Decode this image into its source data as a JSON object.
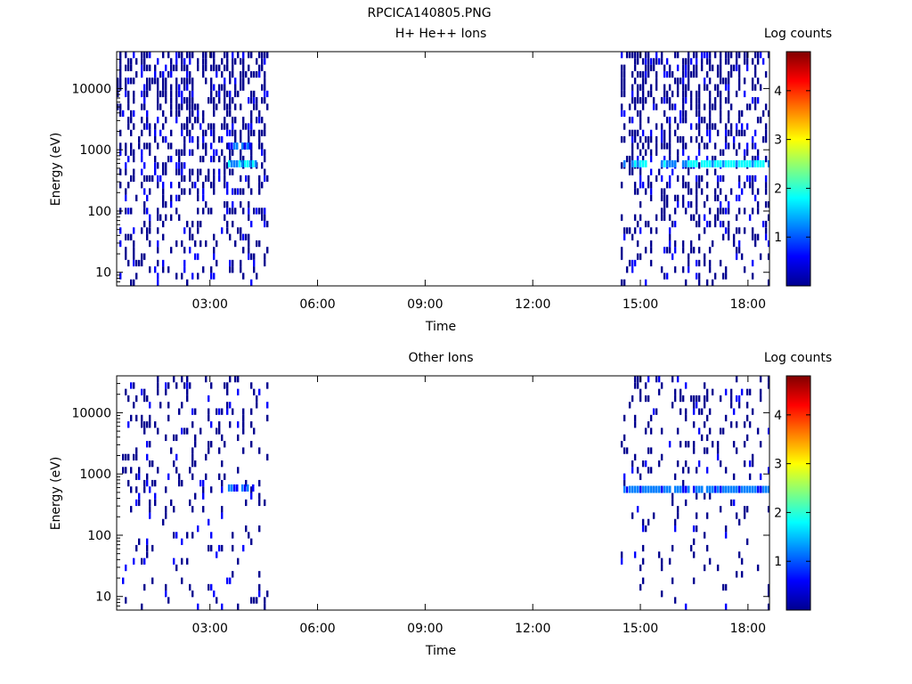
{
  "figure_title": "RPCICA140805.PNG",
  "colormap": [
    "#00008f",
    "#0000ff",
    "#0080ff",
    "#00ffff",
    "#80ff80",
    "#ffff00",
    "#ff8000",
    "#ff0000",
    "#800000"
  ],
  "chart_data": [
    {
      "type": "heatmap",
      "title": "H+ He++ Ions",
      "xlabel": "Time",
      "ylabel": "Energy (eV)",
      "x_unit": "hours",
      "xlim": [
        0.4,
        18.6
      ],
      "y_scale": "log",
      "ylim": [
        6,
        40000
      ],
      "xticks": [
        3,
        6,
        9,
        12,
        15,
        18
      ],
      "xtick_labels": [
        "03:00",
        "06:00",
        "09:00",
        "12:00",
        "15:00",
        "18:00"
      ],
      "yticks": [
        10,
        100,
        1000,
        10000
      ],
      "ytick_labels": [
        "10",
        "100",
        "1000",
        "10000"
      ],
      "colorbar": {
        "label": "Log counts",
        "range": [
          0,
          4.8
        ],
        "ticks": [
          1,
          2,
          3,
          4
        ],
        "tick_labels": [
          "1",
          "2",
          "3",
          "4"
        ]
      },
      "data_intervals_hours": [
        [
          0.4,
          4.65
        ],
        [
          14.45,
          18.6
        ]
      ],
      "density": 0.5,
      "bands": [
        {
          "x": [
            3.5,
            4.25
          ],
          "energy_eV": 590,
          "log_counts": 1.8
        },
        {
          "x": [
            3.5,
            4.1
          ],
          "energy_eV": 1150,
          "log_counts": 1.2
        },
        {
          "x": [
            14.45,
            18.6
          ],
          "energy_eV": 590,
          "log_counts": 1.9
        }
      ],
      "grid": false,
      "legend": "colorbar-right"
    },
    {
      "type": "heatmap",
      "title": "Other Ions",
      "xlabel": "Time",
      "ylabel": "Energy (eV)",
      "x_unit": "hours",
      "xlim": [
        0.4,
        18.6
      ],
      "y_scale": "log",
      "ylim": [
        6,
        40000
      ],
      "xticks": [
        3,
        6,
        9,
        12,
        15,
        18
      ],
      "xtick_labels": [
        "03:00",
        "06:00",
        "09:00",
        "12:00",
        "15:00",
        "18:00"
      ],
      "yticks": [
        10,
        100,
        1000,
        10000
      ],
      "ytick_labels": [
        "10",
        "100",
        "1000",
        "10000"
      ],
      "colorbar": {
        "label": "Log counts",
        "range": [
          0,
          4.8
        ],
        "ticks": [
          1,
          2,
          3,
          4
        ],
        "tick_labels": [
          "1",
          "2",
          "3",
          "4"
        ]
      },
      "data_intervals_hours": [
        [
          0.4,
          4.65
        ],
        [
          14.45,
          18.6
        ]
      ],
      "density": 0.18,
      "bands": [
        {
          "x": [
            3.5,
            4.2
          ],
          "energy_eV": 590,
          "log_counts": 1.2
        },
        {
          "x": [
            14.45,
            18.6
          ],
          "energy_eV": 560,
          "log_counts": 1.3
        }
      ],
      "grid": false,
      "legend": "colorbar-right"
    }
  ]
}
